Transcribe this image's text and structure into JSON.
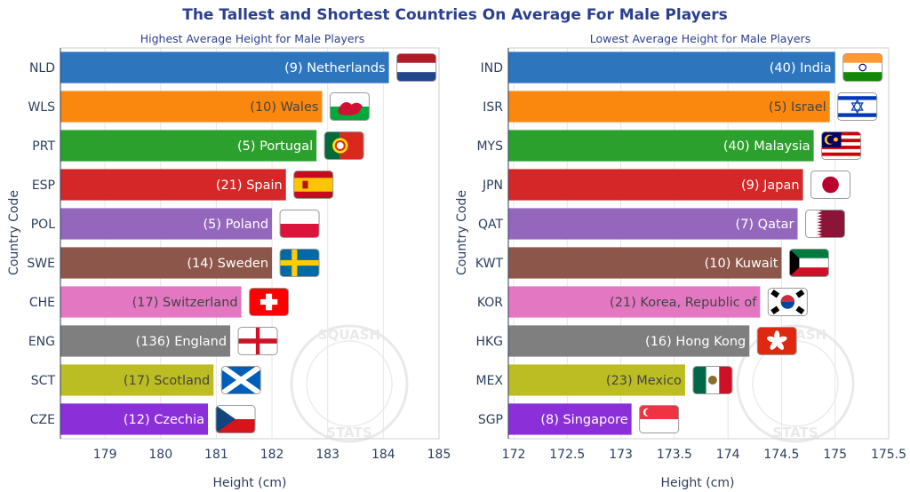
{
  "title": "The Tallest and Shortest Countries On Average For Male Players",
  "y_axis_title": "Country Code",
  "x_axis_title": "Height (cm)",
  "watermark_text": [
    "SQUASH",
    "STATS"
  ],
  "chart_data": [
    {
      "type": "bar",
      "orientation": "horizontal",
      "title": "Highest Average Height for Male Players",
      "xlabel": "Height (cm)",
      "ylabel": "Country Code",
      "xlim": [
        178.2,
        185.0
      ],
      "xticks": [
        179,
        180,
        181,
        182,
        183,
        184,
        185
      ],
      "xtick_labels": [
        "179",
        "180",
        "181",
        "182",
        "183",
        "184",
        "185"
      ],
      "categories": [
        "NLD",
        "WLS",
        "PRT",
        "ESP",
        "POL",
        "SWE",
        "CHE",
        "ENG",
        "SCT",
        "CZE"
      ],
      "values": [
        184.1,
        182.9,
        182.8,
        182.25,
        182.0,
        182.0,
        181.45,
        181.25,
        180.95,
        180.85
      ],
      "labels": [
        "(9) Netherlands",
        "(10) Wales",
        "(5) Portugal",
        "(21) Spain",
        "(5) Poland",
        "(14) Sweden",
        "(17) Switzerland",
        "(136) England",
        "(17) Scotland",
        "(12) Czechia"
      ],
      "flags": [
        "netherlands-flag",
        "wales-flag",
        "portugal-flag",
        "spain-flag",
        "poland-flag",
        "sweden-flag",
        "switzerland-flag",
        "england-flag",
        "scotland-flag",
        "czechia-flag"
      ],
      "colors": [
        "#2d76bd",
        "#fa870e",
        "#2ca02c",
        "#d62728",
        "#9467bd",
        "#8c564b",
        "#e377c2",
        "#7f7f7f",
        "#bcbd22",
        "#8b2fd9"
      ],
      "label_dark": [
        false,
        true,
        false,
        false,
        false,
        false,
        true,
        false,
        true,
        false
      ]
    },
    {
      "type": "bar",
      "orientation": "horizontal",
      "title": "Lowest Average Height for Male Players",
      "xlabel": "Height (cm)",
      "ylabel": "Country Code",
      "xlim": [
        171.95,
        175.5
      ],
      "xticks": [
        172,
        172.5,
        173,
        173.5,
        174,
        174.5,
        175,
        175.5
      ],
      "xtick_labels": [
        "172",
        "172.5",
        "173",
        "173.5",
        "174",
        "174.5",
        "175",
        "175.5"
      ],
      "categories": [
        "IND",
        "ISR",
        "MYS",
        "JPN",
        "QAT",
        "KWT",
        "KOR",
        "HKG",
        "MEX",
        "SGP"
      ],
      "values": [
        175.0,
        174.95,
        174.8,
        174.7,
        174.65,
        174.5,
        174.3,
        174.2,
        173.6,
        173.1
      ],
      "labels": [
        "(40) India",
        "(5) Israel",
        "(40) Malaysia",
        "(9) Japan",
        "(7) Qatar",
        "(10) Kuwait",
        "(21) Korea, Republic of",
        "(16) Hong Kong",
        "(23) Mexico",
        "(8) Singapore"
      ],
      "flags": [
        "india-flag",
        "israel-flag",
        "malaysia-flag",
        "japan-flag",
        "qatar-flag",
        "kuwait-flag",
        "south-korea-flag",
        "hong-kong-flag",
        "mexico-flag",
        "singapore-flag"
      ],
      "colors": [
        "#2d76bd",
        "#fa870e",
        "#2ca02c",
        "#d62728",
        "#9467bd",
        "#8c564b",
        "#e377c2",
        "#7f7f7f",
        "#bcbd22",
        "#8b2fd9"
      ],
      "label_dark": [
        false,
        true,
        false,
        false,
        false,
        false,
        true,
        false,
        true,
        false
      ]
    }
  ]
}
